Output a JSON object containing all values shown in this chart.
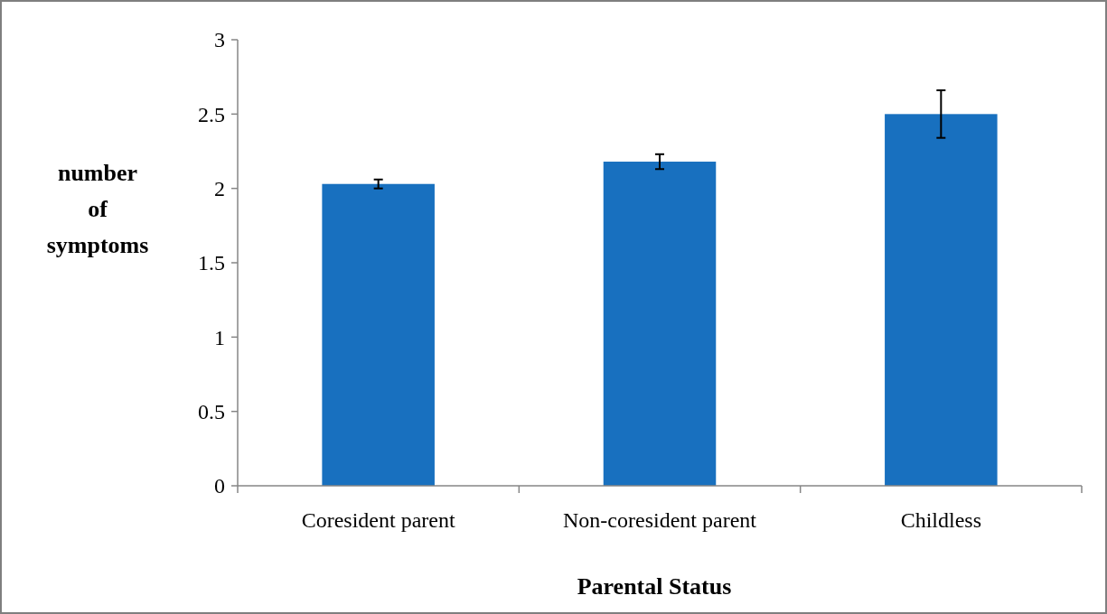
{
  "chart_data": {
    "type": "bar",
    "xlabel": "Parental Status",
    "ylabel": "number of symptoms",
    "categories": [
      "Coresident parent",
      "Non-coresident parent",
      "Childless"
    ],
    "values": [
      2.03,
      2.18,
      2.5
    ],
    "errors": [
      0.03,
      0.05,
      0.16
    ],
    "color": "#1870bf",
    "ylim": [
      0,
      3
    ],
    "yticks": [
      0,
      0.5,
      1,
      1.5,
      2,
      2.5,
      3
    ]
  }
}
